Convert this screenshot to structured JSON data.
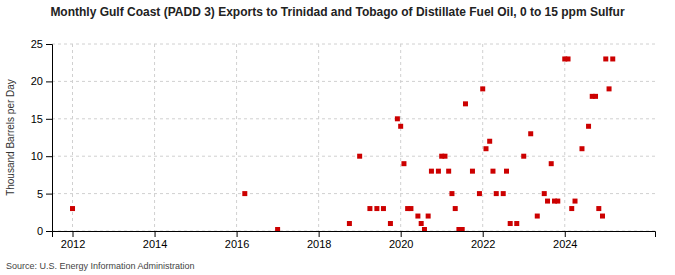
{
  "chart_data": {
    "type": "scatter",
    "title": "Monthly Gulf Coast (PADD 3) Exports to Trinidad and Tobago of Distillate Fuel Oil, 0 to 15 ppm Sulfur",
    "ylabel": "Thousand Barrels per Day",
    "source": "Source: U.S. Energy Information Administration",
    "color": "#cc0000",
    "marker": "square",
    "grid": true,
    "xlim": [
      2011.5,
      2026.2
    ],
    "xticks": [
      2012,
      2014,
      2016,
      2018,
      2020,
      2022,
      2024
    ],
    "ylim": [
      0,
      25
    ],
    "yticks": [
      0,
      5,
      10,
      15,
      20,
      25
    ],
    "x": [
      2012.0,
      2016.2,
      2017.0,
      2018.75,
      2019.0,
      2019.25,
      2019.42,
      2019.58,
      2019.75,
      2019.92,
      2020.0,
      2020.08,
      2020.17,
      2020.25,
      2020.42,
      2020.5,
      2020.58,
      2020.67,
      2020.75,
      2020.92,
      2021.0,
      2021.08,
      2021.17,
      2021.25,
      2021.33,
      2021.42,
      2021.5,
      2021.58,
      2021.75,
      2021.92,
      2022.0,
      2022.08,
      2022.17,
      2022.25,
      2022.33,
      2022.5,
      2022.58,
      2022.67,
      2022.83,
      2023.0,
      2023.17,
      2023.33,
      2023.5,
      2023.58,
      2023.67,
      2023.75,
      2023.83,
      2024.0,
      2024.08,
      2024.17,
      2024.25,
      2024.42,
      2024.58,
      2024.67,
      2024.75,
      2024.83,
      2024.92,
      2025.0,
      2025.08,
      2025.17
    ],
    "values": [
      3,
      5,
      0.2,
      1,
      10,
      3,
      3,
      3,
      1,
      15,
      14,
      9,
      3,
      3,
      2,
      1,
      0.2,
      2,
      8,
      8,
      10,
      10,
      8,
      5,
      3,
      0.2,
      0.2,
      17,
      8,
      5,
      19,
      11,
      12,
      8,
      5,
      5,
      8,
      1,
      1,
      10,
      13,
      2,
      5,
      4,
      9,
      4,
      4,
      23,
      23,
      3,
      4,
      11,
      14,
      18,
      18,
      3,
      2,
      23,
      19,
      23
    ]
  }
}
